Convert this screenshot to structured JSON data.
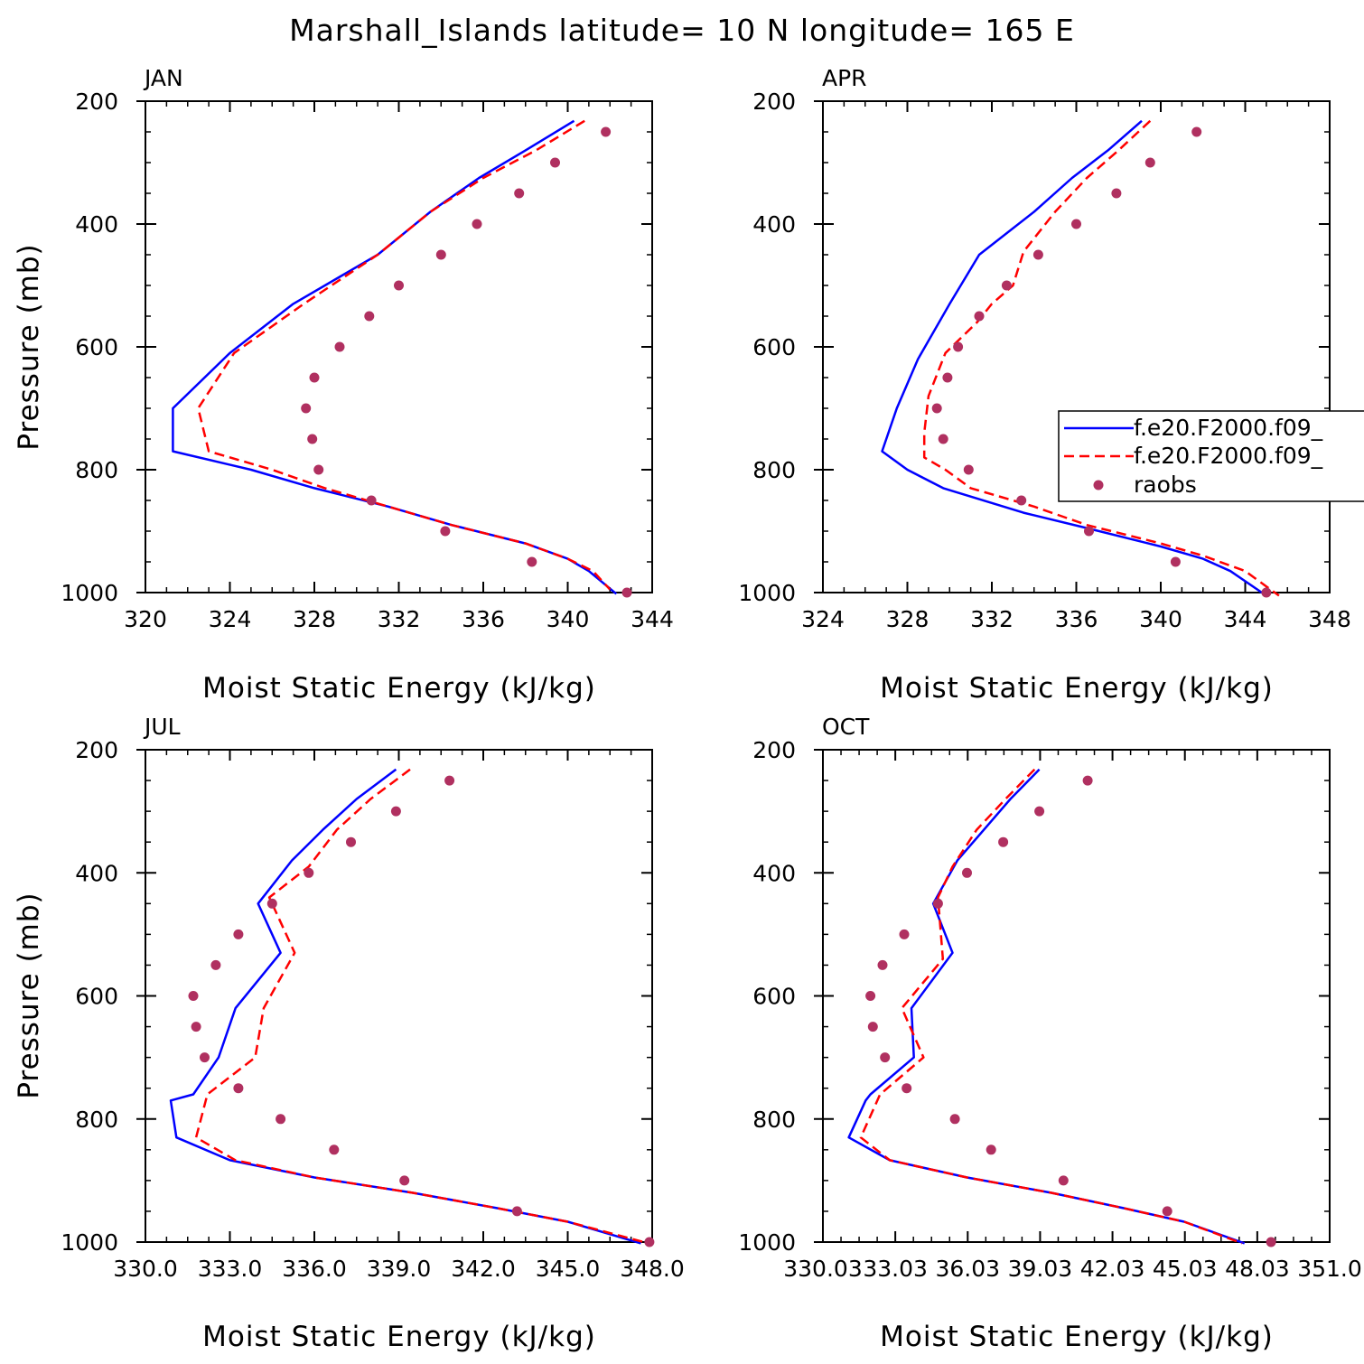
{
  "title": "Marshall_Islands  latitude= 10 N longitude= 165 E",
  "legend": {
    "entries": [
      {
        "label": "f.e20.F2000.f09_",
        "style": "solid",
        "color": "#0000ff"
      },
      {
        "label": "f.e20.F2000.f09_",
        "style": "dashed",
        "color": "#ff0000"
      },
      {
        "label": "raobs",
        "style": "dot",
        "color": "#b03060"
      }
    ]
  },
  "colors": {
    "series1": "#0000ff",
    "series2": "#ff0000",
    "obs": "#b03060"
  },
  "chart_data": [
    {
      "type": "line",
      "panel": "JAN",
      "xlabel": "Moist Static Energy (kJ/kg)",
      "ylabel": "Pressure (mb)",
      "xlim": [
        320,
        344
      ],
      "ylim": [
        200,
        1000
      ],
      "y_inverted": true,
      "xticks": [
        "320",
        "324",
        "328",
        "332",
        "336",
        "340",
        "344"
      ],
      "yticks": [
        "200",
        "400",
        "600",
        "800",
        "1000"
      ],
      "series": [
        {
          "name": "f.e20.F2000.f09_",
          "points": [
            [
              340.3,
              232
            ],
            [
              338.0,
              280
            ],
            [
              335.8,
              325
            ],
            [
              333.5,
              380
            ],
            [
              331.0,
              450
            ],
            [
              327.0,
              530
            ],
            [
              324.0,
              610
            ],
            [
              321.3,
              700
            ],
            [
              321.3,
              770
            ],
            [
              325.0,
              800
            ],
            [
              328.0,
              830
            ],
            [
              331.5,
              860
            ],
            [
              334.5,
              890
            ],
            [
              338.0,
              920
            ],
            [
              340.0,
              945
            ],
            [
              341.0,
              965
            ],
            [
              342.3,
              1002
            ]
          ]
        },
        {
          "name": "f.e20.F2000.f09_",
          "points": [
            [
              340.8,
              232
            ],
            [
              338.5,
              280
            ],
            [
              336.0,
              325
            ],
            [
              333.5,
              380
            ],
            [
              331.0,
              450
            ],
            [
              327.5,
              530
            ],
            [
              324.2,
              610
            ],
            [
              322.5,
              700
            ],
            [
              323.0,
              770
            ],
            [
              326.0,
              800
            ],
            [
              328.5,
              830
            ],
            [
              331.5,
              860
            ],
            [
              334.5,
              890
            ],
            [
              338.0,
              920
            ],
            [
              340.0,
              945
            ],
            [
              341.2,
              965
            ],
            [
              342.0,
              995
            ]
          ]
        }
      ],
      "observations": [
        [
          341.8,
          250
        ],
        [
          339.4,
          300
        ],
        [
          337.7,
          350
        ],
        [
          335.7,
          400
        ],
        [
          334.0,
          450
        ],
        [
          332.0,
          500
        ],
        [
          330.6,
          550
        ],
        [
          329.2,
          600
        ],
        [
          328.0,
          650
        ],
        [
          327.6,
          700
        ],
        [
          327.9,
          750
        ],
        [
          328.2,
          800
        ],
        [
          330.7,
          850
        ],
        [
          334.2,
          900
        ],
        [
          338.3,
          950
        ],
        [
          342.8,
          1000
        ]
      ]
    },
    {
      "type": "line",
      "panel": "APR",
      "xlabel": "Moist Static Energy (kJ/kg)",
      "ylabel": "",
      "xlim": [
        324,
        348
      ],
      "ylim": [
        200,
        1000
      ],
      "y_inverted": true,
      "xticks": [
        "324",
        "328",
        "332",
        "336",
        "340",
        "344",
        "348"
      ],
      "yticks": [
        "200",
        "400",
        "600",
        "800",
        "1000"
      ],
      "series": [
        {
          "name": "f.e20.F2000.f09_",
          "points": [
            [
              339.1,
              232
            ],
            [
              337.5,
              280
            ],
            [
              335.8,
              325
            ],
            [
              334.0,
              380
            ],
            [
              331.4,
              450
            ],
            [
              330.0,
              530
            ],
            [
              328.5,
              620
            ],
            [
              327.5,
              700
            ],
            [
              326.8,
              770
            ],
            [
              328.0,
              800
            ],
            [
              329.7,
              830
            ],
            [
              333.5,
              870
            ],
            [
              336.5,
              895
            ],
            [
              340.0,
              925
            ],
            [
              342.0,
              945
            ],
            [
              343.3,
              965
            ],
            [
              345.0,
              1005
            ]
          ]
        },
        {
          "name": "f.e20.F2000.f09_",
          "points": [
            [
              339.5,
              232
            ],
            [
              338.0,
              280
            ],
            [
              336.5,
              325
            ],
            [
              335.0,
              380
            ],
            [
              333.5,
              445
            ],
            [
              333.0,
              500
            ],
            [
              332.0,
              530
            ],
            [
              331.3,
              560
            ],
            [
              329.8,
              610
            ],
            [
              329.0,
              680
            ],
            [
              328.8,
              740
            ],
            [
              328.8,
              780
            ],
            [
              329.8,
              800
            ],
            [
              331.0,
              830
            ],
            [
              334.0,
              860
            ],
            [
              336.5,
              890
            ],
            [
              340.0,
              920
            ],
            [
              342.0,
              940
            ],
            [
              344.0,
              965
            ],
            [
              345.6,
              1005
            ]
          ]
        }
      ],
      "observations": [
        [
          341.7,
          250
        ],
        [
          339.5,
          300
        ],
        [
          337.9,
          350
        ],
        [
          336.0,
          400
        ],
        [
          334.2,
          450
        ],
        [
          332.7,
          500
        ],
        [
          331.4,
          550
        ],
        [
          330.4,
          600
        ],
        [
          329.9,
          650
        ],
        [
          329.4,
          700
        ],
        [
          329.7,
          750
        ],
        [
          330.9,
          800
        ],
        [
          333.4,
          850
        ],
        [
          336.6,
          900
        ],
        [
          340.7,
          950
        ],
        [
          345.0,
          1000
        ]
      ]
    },
    {
      "type": "line",
      "panel": "JUL",
      "xlabel": "Moist Static Energy (kJ/kg)",
      "ylabel": "Pressure (mb)",
      "xlim": [
        330,
        348
      ],
      "ylim": [
        200,
        1000
      ],
      "y_inverted": true,
      "xticks": [
        "330.0",
        "333.0",
        "336.0",
        "339.0",
        "342.0",
        "345.0",
        "348.0"
      ],
      "yticks": [
        "200",
        "400",
        "600",
        "800",
        "1000"
      ],
      "series": [
        {
          "name": "f.e20.F2000.f09_",
          "points": [
            [
              338.9,
              232
            ],
            [
              337.5,
              280
            ],
            [
              336.3,
              330
            ],
            [
              335.2,
              380
            ],
            [
              334.0,
              450
            ],
            [
              334.8,
              530
            ],
            [
              333.2,
              620
            ],
            [
              332.6,
              700
            ],
            [
              331.7,
              760
            ],
            [
              330.9,
              770
            ],
            [
              331.1,
              830
            ],
            [
              333.0,
              867
            ],
            [
              336.0,
              895
            ],
            [
              339.5,
              920
            ],
            [
              342.5,
              945
            ],
            [
              345.0,
              967
            ],
            [
              347.6,
              1002
            ]
          ]
        },
        {
          "name": "f.e20.F2000.f09_",
          "points": [
            [
              339.4,
              232
            ],
            [
              338.0,
              280
            ],
            [
              336.8,
              330
            ],
            [
              335.8,
              390
            ],
            [
              334.4,
              440
            ],
            [
              335.3,
              530
            ],
            [
              334.2,
              620
            ],
            [
              333.9,
              700
            ],
            [
              332.2,
              760
            ],
            [
              331.8,
              830
            ],
            [
              333.2,
              867
            ],
            [
              336.0,
              895
            ],
            [
              339.5,
              920
            ],
            [
              342.5,
              945
            ],
            [
              345.0,
              967
            ],
            [
              347.7,
              1000
            ]
          ]
        }
      ],
      "observations": [
        [
          340.8,
          250
        ],
        [
          338.9,
          300
        ],
        [
          337.3,
          350
        ],
        [
          335.8,
          400
        ],
        [
          334.5,
          450
        ],
        [
          333.3,
          500
        ],
        [
          332.5,
          550
        ],
        [
          331.7,
          600
        ],
        [
          331.8,
          650
        ],
        [
          332.1,
          700
        ],
        [
          333.3,
          750
        ],
        [
          334.8,
          800
        ],
        [
          336.7,
          850
        ],
        [
          339.2,
          900
        ],
        [
          343.2,
          950
        ],
        [
          347.9,
          1000
        ]
      ]
    },
    {
      "type": "line",
      "panel": "OCT",
      "xlabel": "Moist Static Energy (kJ/kg)",
      "ylabel": "",
      "xlim": [
        330.03,
        351.03
      ],
      "ylim": [
        200,
        1000
      ],
      "y_inverted": true,
      "xticks": [
        "330.03",
        "33.03",
        "36.03",
        "39.03",
        "42.03",
        "45.03",
        "48.03",
        "351.0"
      ],
      "yticks": [
        "200",
        "400",
        "600",
        "800",
        "1000"
      ],
      "series": [
        {
          "name": "f.e20.F2000.f09_",
          "points": [
            [
              339.0,
              232
            ],
            [
              337.8,
              280
            ],
            [
              336.7,
              330
            ],
            [
              335.6,
              380
            ],
            [
              334.6,
              450
            ],
            [
              335.4,
              530
            ],
            [
              333.7,
              620
            ],
            [
              333.8,
              700
            ],
            [
              332.0,
              760
            ],
            [
              331.8,
              770
            ],
            [
              331.1,
              830
            ],
            [
              332.8,
              867
            ],
            [
              336.0,
              895
            ],
            [
              339.5,
              920
            ],
            [
              342.5,
              945
            ],
            [
              345.0,
              967
            ],
            [
              347.5,
              1002
            ]
          ]
        },
        {
          "name": "f.e20.F2000.f09_",
          "points": [
            [
              338.8,
              232
            ],
            [
              337.6,
              280
            ],
            [
              336.4,
              330
            ],
            [
              335.4,
              390
            ],
            [
              334.8,
              440
            ],
            [
              335.0,
              540
            ],
            [
              333.3,
              620
            ],
            [
              334.2,
              700
            ],
            [
              332.4,
              760
            ],
            [
              331.6,
              830
            ],
            [
              332.8,
              867
            ],
            [
              336.0,
              895
            ],
            [
              339.5,
              920
            ],
            [
              342.5,
              945
            ],
            [
              345.0,
              967
            ],
            [
              347.4,
              1002
            ]
          ]
        }
      ],
      "observations": [
        [
          341.0,
          250
        ],
        [
          339.0,
          300
        ],
        [
          337.5,
          350
        ],
        [
          336.0,
          400
        ],
        [
          334.8,
          450
        ],
        [
          333.4,
          500
        ],
        [
          332.5,
          550
        ],
        [
          332.0,
          600
        ],
        [
          332.1,
          650
        ],
        [
          332.6,
          700
        ],
        [
          333.5,
          750
        ],
        [
          335.5,
          800
        ],
        [
          337.0,
          850
        ],
        [
          340.0,
          900
        ],
        [
          344.3,
          950
        ],
        [
          348.6,
          1000
        ]
      ]
    }
  ]
}
